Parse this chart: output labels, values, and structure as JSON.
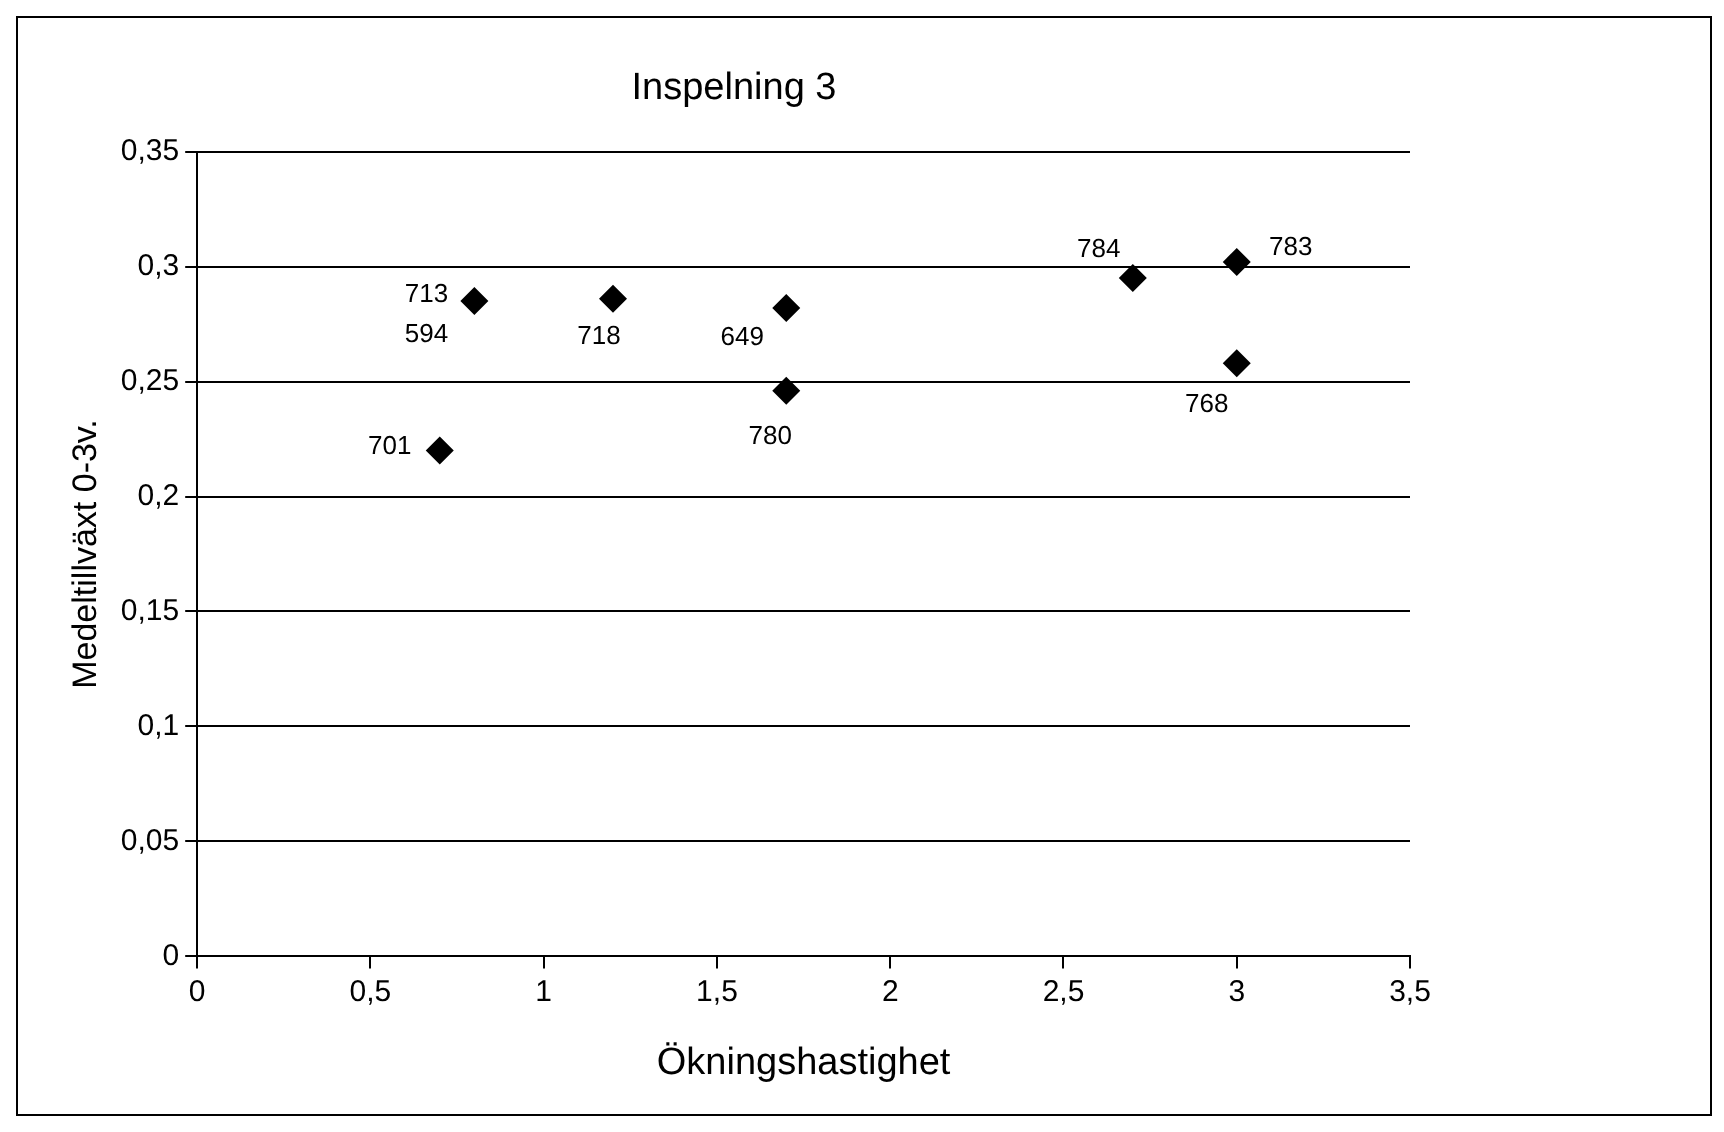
{
  "chart_data": {
    "type": "scatter",
    "title": "Inspelning 3",
    "xlabel": "Ökningshastighet",
    "ylabel": "Medeltillväxt 0-3v.",
    "x": [
      0.7,
      0.8,
      1.2,
      1.7,
      1.7,
      2.7,
      3.0,
      3.0
    ],
    "series": [
      {
        "color": "#000000",
        "values": [
          0.22,
          0.285,
          0.286,
          0.282,
          0.246,
          0.295,
          0.302,
          0.258
        ]
      }
    ],
    "xlim": [
      0,
      3.5
    ],
    "xticks": [
      0,
      {
        "value": 0.5,
        "label": "0,5"
      },
      1,
      {
        "value": 1.5,
        "label": "1,5"
      },
      2,
      {
        "value": 2.5,
        "label": "2,5"
      },
      3,
      {
        "value": 3.5,
        "label": "3,5"
      }
    ],
    "ylim": [
      0,
      0.35
    ],
    "yticks": [
      0,
      {
        "value": 0.05,
        "label": "0,05"
      },
      {
        "value": 0.1,
        "label": "0,1"
      },
      {
        "value": 0.15,
        "label": "0,15"
      },
      {
        "value": 0.2,
        "label": "0,2"
      },
      {
        "value": 0.25,
        "label": "0,25"
      },
      {
        "value": 0.3,
        "label": "0,3"
      },
      {
        "value": 0.35,
        "label": "0,35"
      }
    ],
    "grid": "y",
    "legend": false,
    "marker": "diamond",
    "annotations": [
      {
        "text": "701",
        "x": 0.7,
        "y": 0.22
      },
      {
        "text": "713",
        "x": 0.8,
        "y": 0.285
      },
      {
        "text": "594",
        "x": 0.8,
        "y": 0.285
      },
      {
        "text": "718",
        "x": 1.2,
        "y": 0.286
      },
      {
        "text": "649",
        "x": 1.7,
        "y": 0.282
      },
      {
        "text": "780",
        "x": 1.7,
        "y": 0.246
      },
      {
        "text": "784",
        "x": 2.7,
        "y": 0.295
      },
      {
        "text": "783",
        "x": 3.0,
        "y": 0.302
      },
      {
        "text": "768",
        "x": 3.0,
        "y": 0.258
      }
    ]
  }
}
